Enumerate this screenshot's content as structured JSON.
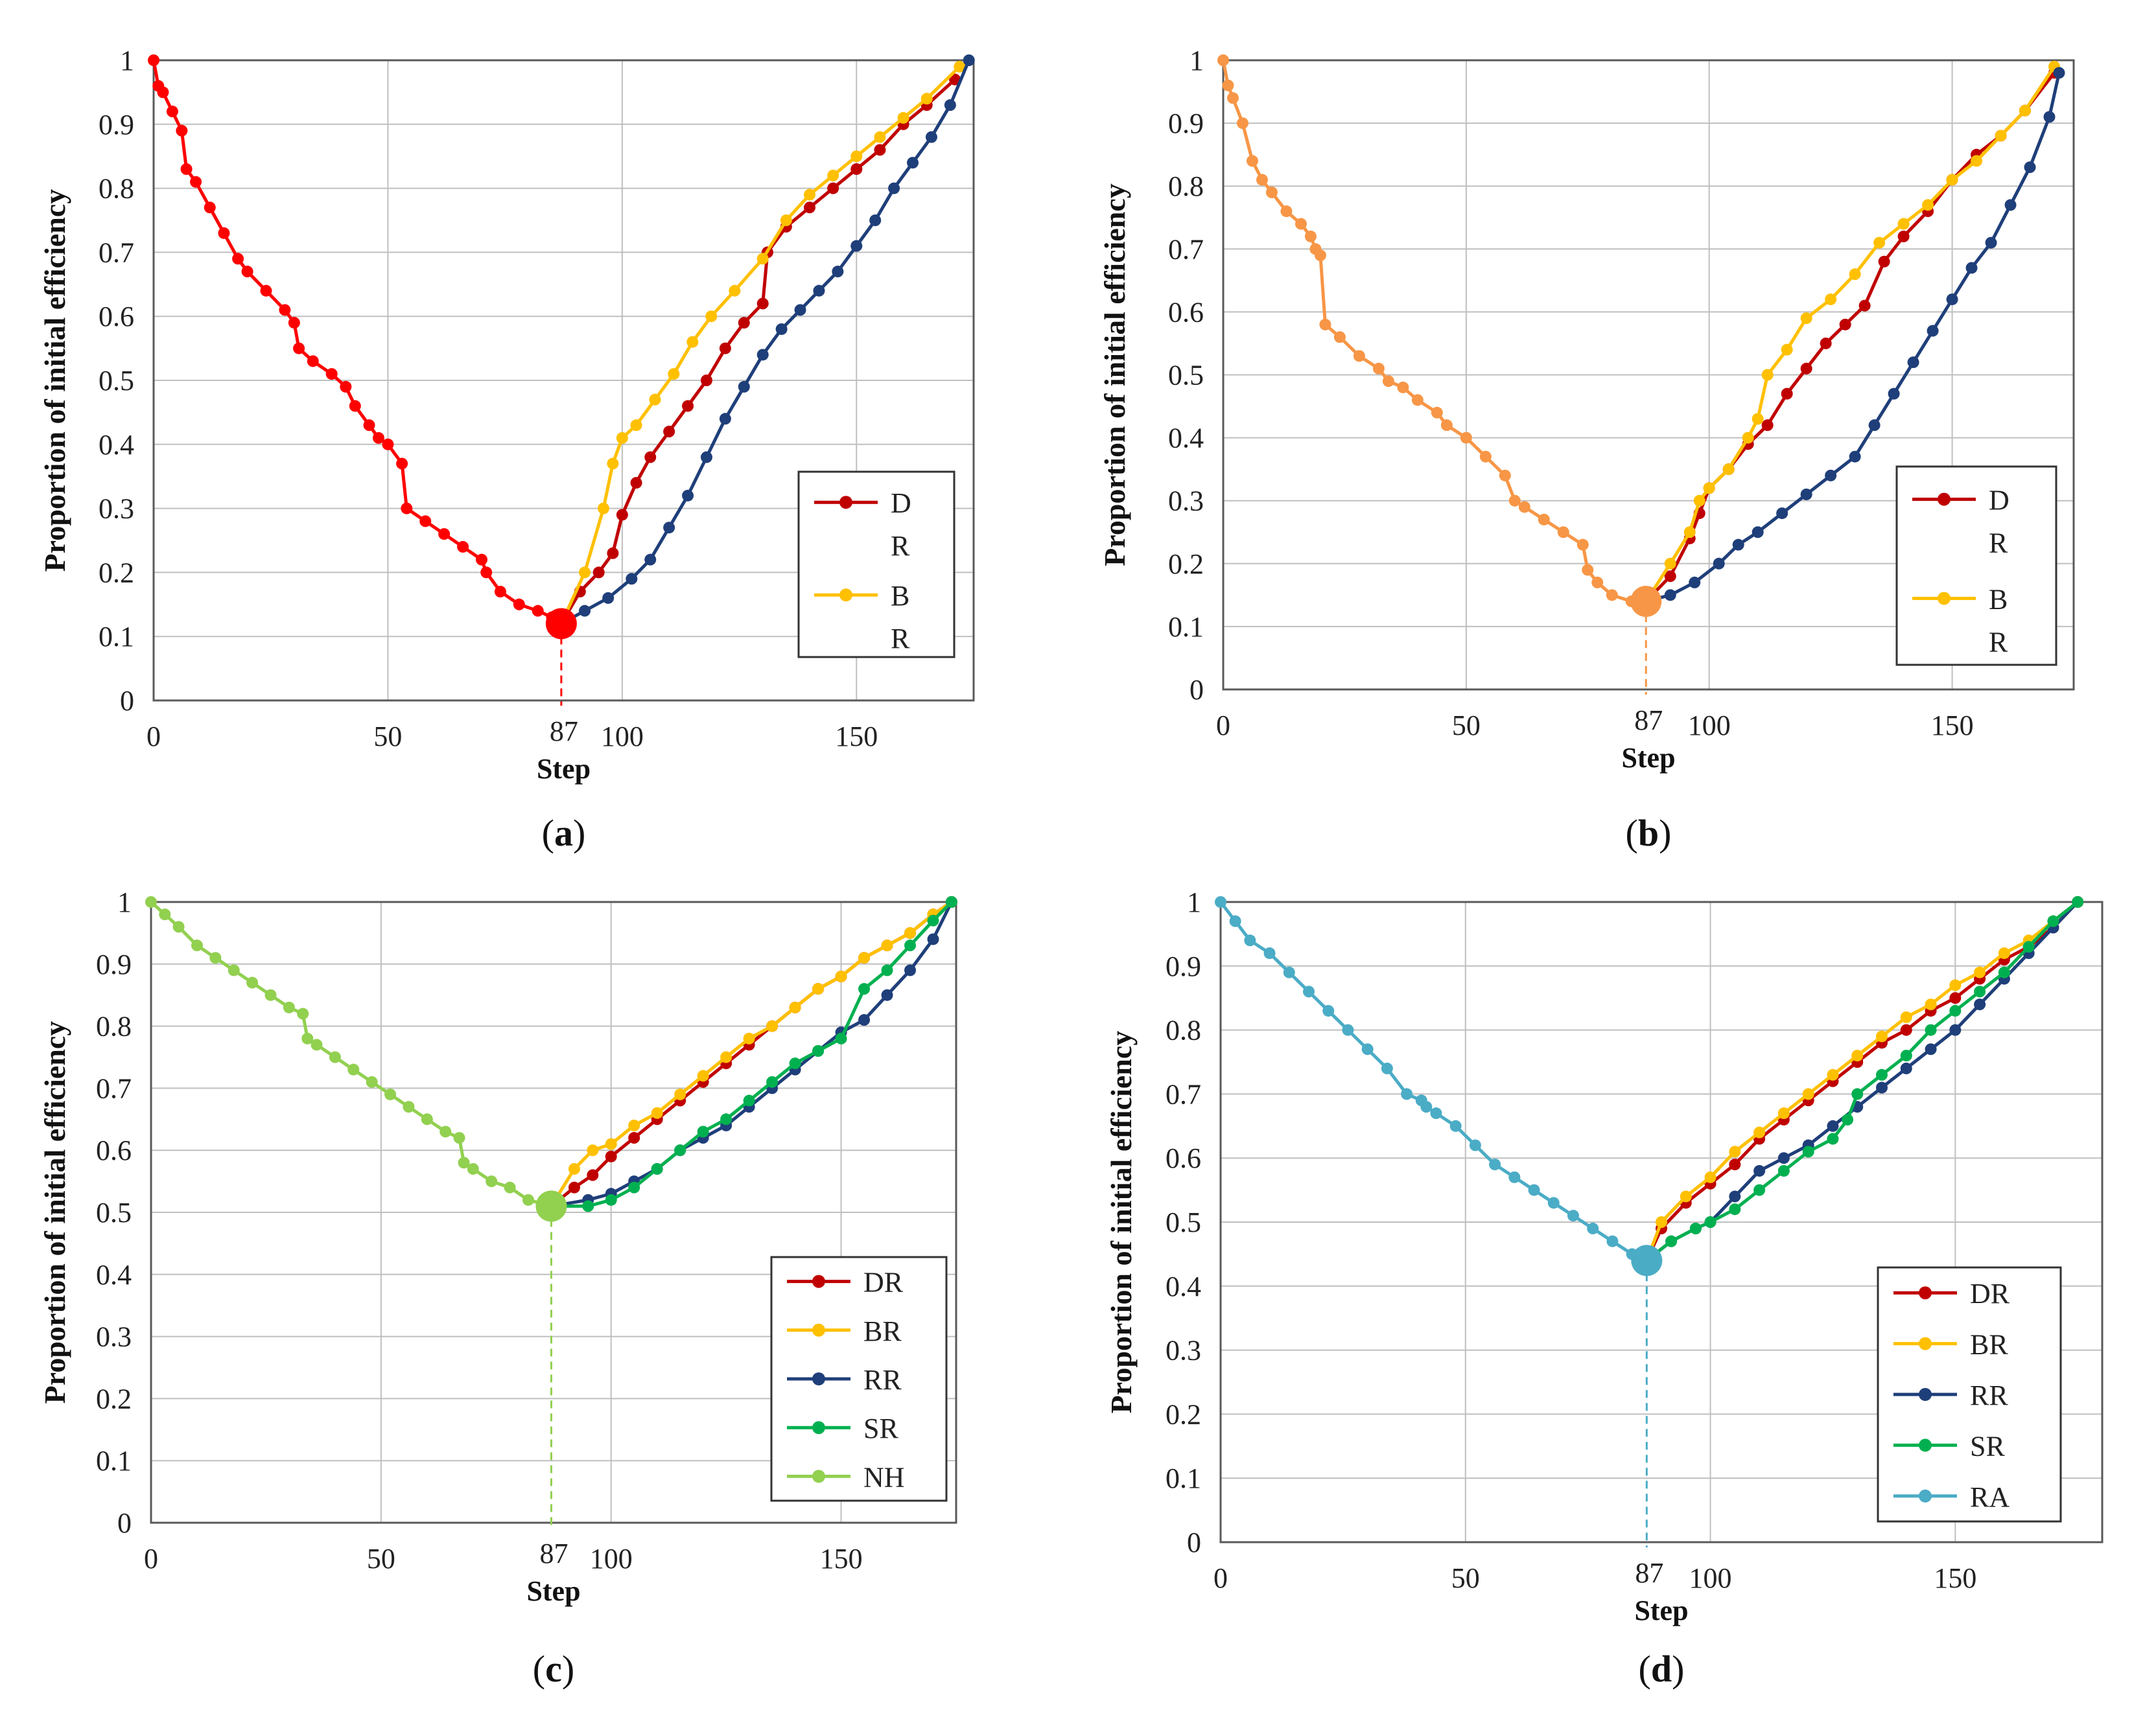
{
  "figure": {
    "captions": [
      "(a)",
      "(b)",
      "(c)",
      "(d)"
    ]
  },
  "colors": {
    "DR": "#C00000",
    "BR": "#FFC000",
    "RR": "#1F3F7A",
    "SR": "#00B050",
    "grid": "#BFBFBF",
    "axis": "#595959"
  },
  "chart_data": [
    {
      "type": "line",
      "caption_letter": "a",
      "xlabel": "Step",
      "ylabel": "Proportion of initial efficiency",
      "xlim": [
        0,
        175
      ],
      "ylim": [
        0,
        1
      ],
      "xticks": [
        0,
        50,
        100,
        150
      ],
      "yticks": [
        0,
        0.1,
        0.2,
        0.3,
        0.4,
        0.5,
        0.6,
        0.7,
        0.8,
        0.9,
        1
      ],
      "annotation": {
        "x": 87,
        "label": "87",
        "y": 0.12
      },
      "legend": {
        "position": "right",
        "entries": [
          [
            "D",
            "R"
          ],
          [
            "B",
            "R"
          ]
        ],
        "entry_colors": [
          "#C00000",
          "#FFC000"
        ]
      },
      "removal": {
        "name": "removal",
        "color": "#FF0000",
        "x": [
          0,
          1,
          2,
          4,
          6,
          7,
          9,
          12,
          15,
          18,
          20,
          24,
          28,
          30,
          31,
          34,
          38,
          41,
          43,
          46,
          48,
          50,
          53,
          54,
          58,
          62,
          66,
          70,
          71,
          74,
          78,
          82,
          85,
          87
        ],
        "y": [
          1.0,
          0.96,
          0.95,
          0.92,
          0.89,
          0.83,
          0.81,
          0.77,
          0.73,
          0.69,
          0.67,
          0.64,
          0.61,
          0.59,
          0.55,
          0.53,
          0.51,
          0.49,
          0.46,
          0.43,
          0.41,
          0.4,
          0.37,
          0.3,
          0.28,
          0.26,
          0.24,
          0.22,
          0.2,
          0.17,
          0.15,
          0.14,
          0.13,
          0.12
        ]
      },
      "series": [
        {
          "name": "DR",
          "color": "#C00000",
          "x": [
            87,
            91,
            95,
            98,
            100,
            103,
            106,
            110,
            114,
            118,
            122,
            126,
            130,
            131,
            135,
            140,
            145,
            150,
            155,
            160,
            165,
            171
          ],
          "y": [
            0.12,
            0.17,
            0.2,
            0.23,
            0.29,
            0.34,
            0.38,
            0.42,
            0.46,
            0.5,
            0.55,
            0.59,
            0.62,
            0.7,
            0.74,
            0.77,
            0.8,
            0.83,
            0.86,
            0.9,
            0.93,
            0.97
          ]
        },
        {
          "name": "BR",
          "color": "#FFC000",
          "x": [
            87,
            92,
            96,
            98,
            100,
            103,
            107,
            111,
            115,
            119,
            124,
            130,
            135,
            140,
            145,
            150,
            155,
            160,
            165,
            172
          ],
          "y": [
            0.12,
            0.2,
            0.3,
            0.37,
            0.41,
            0.43,
            0.47,
            0.51,
            0.56,
            0.6,
            0.64,
            0.69,
            0.75,
            0.79,
            0.82,
            0.85,
            0.88,
            0.91,
            0.94,
            0.99
          ]
        },
        {
          "name": "RR",
          "color": "#1F3F7A",
          "x": [
            87,
            92,
            97,
            102,
            106,
            110,
            114,
            118,
            122,
            126,
            130,
            134,
            138,
            142,
            146,
            150,
            154,
            158,
            162,
            166,
            170,
            174
          ],
          "y": [
            0.12,
            0.14,
            0.16,
            0.19,
            0.22,
            0.27,
            0.32,
            0.38,
            0.44,
            0.49,
            0.54,
            0.58,
            0.61,
            0.64,
            0.67,
            0.71,
            0.75,
            0.8,
            0.84,
            0.88,
            0.93,
            1.0
          ]
        }
      ]
    },
    {
      "type": "line",
      "caption_letter": "b",
      "xlabel": "Step",
      "ylabel": "Proportion of initial efficiency",
      "xlim": [
        0,
        175
      ],
      "ylim": [
        0,
        1
      ],
      "xticks": [
        0,
        50,
        100,
        150
      ],
      "yticks": [
        0,
        0.1,
        0.2,
        0.3,
        0.4,
        0.5,
        0.6,
        0.7,
        0.8,
        0.9,
        1
      ],
      "annotation": {
        "x": 87,
        "label": "87",
        "y": 0.14
      },
      "legend": {
        "position": "right",
        "entries": [
          [
            "D",
            "R"
          ],
          [
            "B",
            "R"
          ]
        ],
        "entry_colors": [
          "#C00000",
          "#FFC000"
        ]
      },
      "removal": {
        "name": "removal",
        "color": "#F79646",
        "x": [
          0,
          1,
          2,
          4,
          6,
          8,
          10,
          13,
          16,
          18,
          19,
          20,
          21,
          24,
          28,
          32,
          34,
          37,
          40,
          44,
          46,
          50,
          54,
          58,
          60,
          62,
          66,
          70,
          74,
          75,
          77,
          80,
          84,
          87
        ],
        "y": [
          1.0,
          0.96,
          0.94,
          0.9,
          0.84,
          0.81,
          0.79,
          0.76,
          0.74,
          0.72,
          0.7,
          0.69,
          0.58,
          0.56,
          0.53,
          0.51,
          0.49,
          0.48,
          0.46,
          0.44,
          0.42,
          0.4,
          0.37,
          0.34,
          0.3,
          0.29,
          0.27,
          0.25,
          0.23,
          0.19,
          0.17,
          0.15,
          0.14,
          0.14
        ]
      },
      "series": [
        {
          "name": "DR",
          "color": "#C00000",
          "x": [
            87,
            92,
            96,
            98,
            100,
            104,
            108,
            112,
            116,
            120,
            124,
            128,
            132,
            136,
            140,
            145,
            150,
            155,
            160,
            165,
            171
          ],
          "y": [
            0.14,
            0.18,
            0.24,
            0.28,
            0.32,
            0.35,
            0.39,
            0.42,
            0.47,
            0.51,
            0.55,
            0.58,
            0.61,
            0.68,
            0.72,
            0.76,
            0.81,
            0.85,
            0.88,
            0.92,
            0.98
          ]
        },
        {
          "name": "BR",
          "color": "#FFC000",
          "x": [
            87,
            92,
            96,
            98,
            100,
            104,
            108,
            110,
            112,
            116,
            120,
            125,
            130,
            135,
            140,
            145,
            150,
            155,
            160,
            165,
            171
          ],
          "y": [
            0.14,
            0.2,
            0.25,
            0.3,
            0.32,
            0.35,
            0.4,
            0.43,
            0.5,
            0.54,
            0.59,
            0.62,
            0.66,
            0.71,
            0.74,
            0.77,
            0.81,
            0.84,
            0.88,
            0.92,
            0.99
          ]
        },
        {
          "name": "RR",
          "color": "#1F3F7A",
          "x": [
            87,
            92,
            97,
            102,
            106,
            110,
            115,
            120,
            125,
            130,
            134,
            138,
            142,
            146,
            150,
            154,
            158,
            162,
            166,
            170,
            172
          ],
          "y": [
            0.14,
            0.15,
            0.17,
            0.2,
            0.23,
            0.25,
            0.28,
            0.31,
            0.34,
            0.37,
            0.42,
            0.47,
            0.52,
            0.57,
            0.62,
            0.67,
            0.71,
            0.77,
            0.83,
            0.91,
            0.98
          ]
        }
      ]
    },
    {
      "type": "line",
      "caption_letter": "c",
      "xlabel": "Step",
      "ylabel": "Proportion of initial efficiency",
      "xlim": [
        0,
        175
      ],
      "ylim": [
        0,
        1
      ],
      "xticks": [
        0,
        50,
        100,
        150
      ],
      "yticks": [
        0,
        0.1,
        0.2,
        0.3,
        0.4,
        0.5,
        0.6,
        0.7,
        0.8,
        0.9,
        1
      ],
      "annotation": {
        "x": 87,
        "label": "87",
        "y": 0.51
      },
      "legend": {
        "position": "right",
        "entries": [
          [
            "DR"
          ],
          [
            "BR"
          ],
          [
            "RR"
          ],
          [
            "SR"
          ],
          [
            "NH"
          ]
        ],
        "entry_colors": [
          "#C00000",
          "#FFC000",
          "#1F3F7A",
          "#00B050",
          "#92D050"
        ]
      },
      "series": [
        {
          "name": "NH",
          "color": "#92D050",
          "x": [
            0,
            3,
            6,
            10,
            14,
            18,
            22,
            26,
            30,
            33,
            34,
            36,
            40,
            44,
            48,
            52,
            56,
            60,
            64,
            67,
            68,
            70,
            74,
            78,
            82,
            87
          ],
          "y": [
            1.0,
            0.98,
            0.96,
            0.93,
            0.91,
            0.89,
            0.87,
            0.85,
            0.83,
            0.82,
            0.78,
            0.77,
            0.75,
            0.73,
            0.71,
            0.69,
            0.67,
            0.65,
            0.63,
            0.62,
            0.58,
            0.57,
            0.55,
            0.54,
            0.52,
            0.51
          ]
        },
        {
          "name": "DR",
          "color": "#C00000",
          "x": [
            87,
            92,
            96,
            100,
            105,
            110,
            115,
            120,
            125,
            130,
            135,
            140,
            145,
            150,
            155,
            160,
            165,
            170,
            174
          ],
          "y": [
            0.51,
            0.54,
            0.56,
            0.59,
            0.62,
            0.65,
            0.68,
            0.71,
            0.74,
            0.77,
            0.8,
            0.83,
            0.86,
            0.88,
            0.91,
            0.93,
            0.95,
            0.98,
            1.0
          ]
        },
        {
          "name": "BR",
          "color": "#FFC000",
          "x": [
            87,
            92,
            96,
            100,
            105,
            110,
            115,
            120,
            125,
            130,
            135,
            140,
            145,
            150,
            155,
            160,
            165,
            170,
            174
          ],
          "y": [
            0.51,
            0.57,
            0.6,
            0.61,
            0.64,
            0.66,
            0.69,
            0.72,
            0.75,
            0.78,
            0.8,
            0.83,
            0.86,
            0.88,
            0.91,
            0.93,
            0.95,
            0.98,
            1.0
          ]
        },
        {
          "name": "RR",
          "color": "#1F3F7A",
          "x": [
            87,
            95,
            100,
            105,
            110,
            115,
            120,
            125,
            130,
            135,
            140,
            145,
            150,
            155,
            160,
            165,
            170,
            174
          ],
          "y": [
            0.51,
            0.52,
            0.53,
            0.55,
            0.57,
            0.6,
            0.62,
            0.64,
            0.67,
            0.7,
            0.73,
            0.76,
            0.79,
            0.81,
            0.85,
            0.89,
            0.94,
            1.0
          ]
        },
        {
          "name": "SR",
          "color": "#00B050",
          "x": [
            87,
            95,
            100,
            105,
            110,
            115,
            120,
            125,
            130,
            135,
            140,
            145,
            150,
            155,
            160,
            165,
            170,
            174
          ],
          "y": [
            0.51,
            0.51,
            0.52,
            0.54,
            0.57,
            0.6,
            0.63,
            0.65,
            0.68,
            0.71,
            0.74,
            0.76,
            0.78,
            0.86,
            0.89,
            0.93,
            0.97,
            1.0
          ]
        }
      ]
    },
    {
      "type": "line",
      "caption_letter": "d",
      "xlabel": "Step",
      "ylabel": "Proportion of initial efficiency",
      "xlim": [
        0,
        180
      ],
      "ylim": [
        0,
        1
      ],
      "xticks": [
        0,
        50,
        100,
        150
      ],
      "yticks": [
        0,
        0.1,
        0.2,
        0.3,
        0.4,
        0.5,
        0.6,
        0.7,
        0.8,
        0.9,
        1
      ],
      "annotation": {
        "x": 87,
        "label": "87",
        "y": 0.44
      },
      "legend": {
        "position": "right",
        "entries": [
          [
            "DR"
          ],
          [
            "BR"
          ],
          [
            "RR"
          ],
          [
            "SR"
          ],
          [
            "RA"
          ]
        ],
        "entry_colors": [
          "#C00000",
          "#FFC000",
          "#1F3F7A",
          "#00B050",
          "#4BACC6"
        ]
      },
      "series": [
        {
          "name": "RA",
          "color": "#4BACC6",
          "x": [
            0,
            3,
            6,
            10,
            14,
            18,
            22,
            26,
            30,
            34,
            38,
            41,
            42,
            44,
            48,
            52,
            56,
            60,
            64,
            68,
            72,
            76,
            80,
            84,
            87
          ],
          "y": [
            1.0,
            0.97,
            0.94,
            0.92,
            0.89,
            0.86,
            0.83,
            0.8,
            0.77,
            0.74,
            0.7,
            0.69,
            0.68,
            0.67,
            0.65,
            0.62,
            0.59,
            0.57,
            0.55,
            0.53,
            0.51,
            0.49,
            0.47,
            0.45,
            0.44
          ]
        },
        {
          "name": "DR",
          "color": "#C00000",
          "x": [
            87,
            90,
            95,
            100,
            105,
            110,
            115,
            120,
            125,
            130,
            135,
            140,
            145,
            150,
            155,
            160,
            165,
            170,
            175
          ],
          "y": [
            0.44,
            0.49,
            0.53,
            0.56,
            0.59,
            0.63,
            0.66,
            0.69,
            0.72,
            0.75,
            0.78,
            0.8,
            0.83,
            0.85,
            0.88,
            0.91,
            0.93,
            0.96,
            1.0
          ]
        },
        {
          "name": "BR",
          "color": "#FFC000",
          "x": [
            87,
            90,
            95,
            100,
            105,
            110,
            115,
            120,
            125,
            130,
            135,
            140,
            145,
            150,
            155,
            160,
            165,
            170,
            175
          ],
          "y": [
            0.44,
            0.5,
            0.54,
            0.57,
            0.61,
            0.64,
            0.67,
            0.7,
            0.73,
            0.76,
            0.79,
            0.82,
            0.84,
            0.87,
            0.89,
            0.92,
            0.94,
            0.97,
            1.0
          ]
        },
        {
          "name": "RR",
          "color": "#1F3F7A",
          "x": [
            87,
            92,
            97,
            100,
            105,
            110,
            115,
            120,
            125,
            130,
            135,
            140,
            145,
            150,
            155,
            160,
            165,
            170,
            175
          ],
          "y": [
            0.44,
            0.47,
            0.49,
            0.5,
            0.54,
            0.58,
            0.6,
            0.62,
            0.65,
            0.68,
            0.71,
            0.74,
            0.77,
            0.8,
            0.84,
            0.88,
            0.92,
            0.96,
            1.0
          ]
        },
        {
          "name": "SR",
          "color": "#00B050",
          "x": [
            87,
            92,
            97,
            100,
            105,
            110,
            115,
            120,
            125,
            128,
            130,
            135,
            140,
            145,
            150,
            155,
            160,
            165,
            170,
            175
          ],
          "y": [
            0.44,
            0.47,
            0.49,
            0.5,
            0.52,
            0.55,
            0.58,
            0.61,
            0.63,
            0.66,
            0.7,
            0.73,
            0.76,
            0.8,
            0.83,
            0.86,
            0.89,
            0.93,
            0.97,
            1.0
          ]
        }
      ]
    }
  ]
}
